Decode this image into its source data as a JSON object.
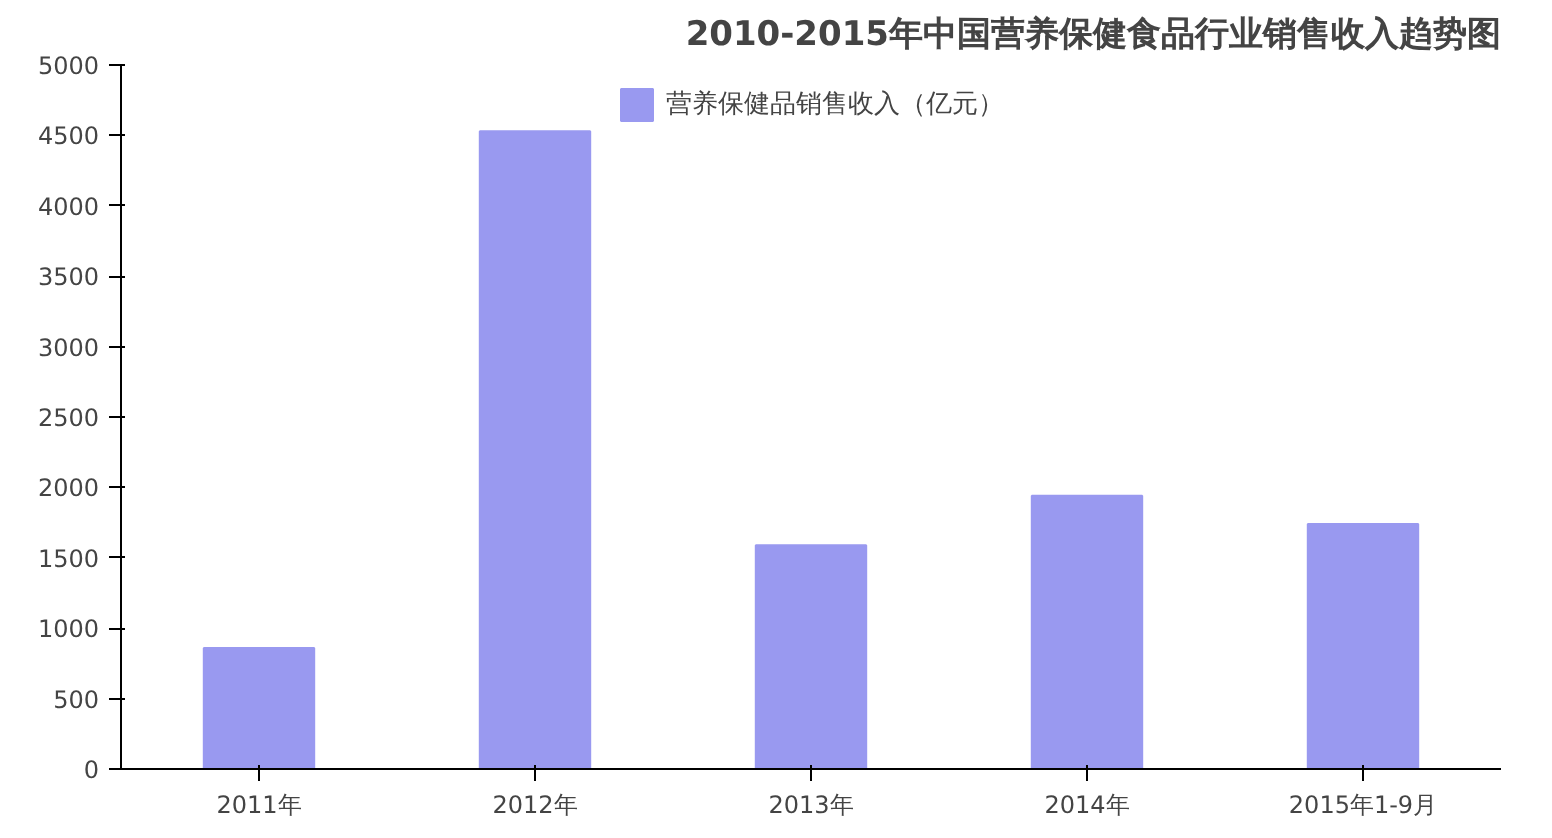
{
  "chart_data": {
    "type": "bar",
    "title": "2010-2015年中国营养保健食品行业销售收入趋势图",
    "categories": [
      "2011年",
      "2012年",
      "2013年",
      "2014年",
      "2015年1-9月"
    ],
    "series": [
      {
        "name": "营养保健品销售收入（亿元）",
        "color": "#9999f0",
        "values": [
          860,
          4530,
          1590,
          1940,
          1740
        ]
      }
    ],
    "ylim": [
      0,
      5000
    ],
    "yticks": [
      0,
      500,
      1000,
      1500,
      2000,
      2500,
      3000,
      3500,
      4000,
      4500,
      5000
    ],
    "grid": false,
    "legend": "top"
  }
}
